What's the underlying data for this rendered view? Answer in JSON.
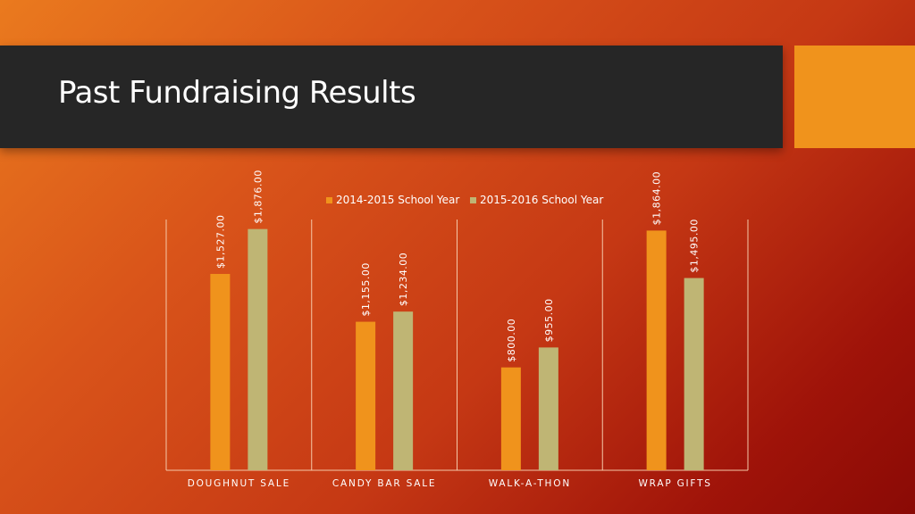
{
  "slide": {
    "title": "Past Fundraising Results"
  },
  "colors": {
    "title_bar": "#262626",
    "accent_square": "#f0931c",
    "series_1": "#f0931c",
    "series_2": "#bfb574",
    "gridline": "#f5c8a8"
  },
  "chart_data": {
    "type": "bar",
    "categories": [
      "DOUGHNUT SALE",
      "CANDY BAR SALE",
      "WALK-A-THON",
      "WRAP GIFTS"
    ],
    "series": [
      {
        "name": "2014-2015 School Year",
        "values": [
          1527,
          1155,
          800,
          1864
        ],
        "labels": [
          "$1,527.00",
          "$1,155.00",
          "$800.00",
          "$1,864.00"
        ]
      },
      {
        "name": "2015-2016 School Year",
        "values": [
          1876,
          1234,
          955,
          1495
        ],
        "labels": [
          "$1,876.00",
          "$1,234.00",
          "$955.00",
          "$1,495.00"
        ]
      }
    ],
    "title": "",
    "xlabel": "",
    "ylabel": "",
    "ylim": [
      0,
      1950
    ],
    "grid": "vertical category separators",
    "legend": "top-center",
    "data_labels": "rotated-vertical"
  }
}
